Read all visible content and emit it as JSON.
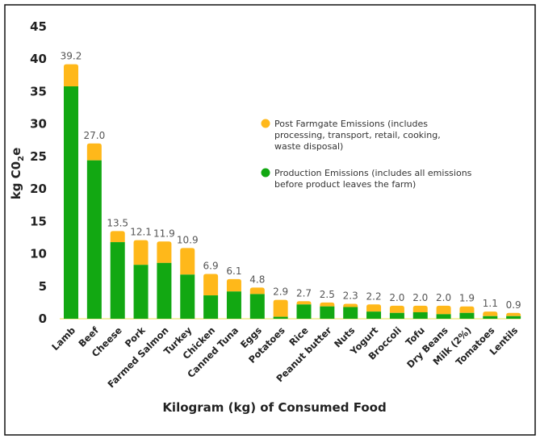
{
  "chart_data": {
    "type": "bar",
    "stacked": true,
    "title": "",
    "xlabel": "Kilogram (kg) of Consumed Food",
    "ylabel": "kg CO2e",
    "ylabel_main": "kg C0",
    "ylabel_sub": "2",
    "ylabel_end": "e",
    "ylim": [
      0,
      45
    ],
    "yticks": [
      0,
      5,
      10,
      15,
      20,
      25,
      30,
      35,
      40,
      45
    ],
    "grid": false,
    "legend_position": "center-right",
    "categories": [
      "Lamb",
      "Beef",
      "Cheese",
      "Pork",
      "Farmed Salmon",
      "Turkey",
      "Chicken",
      "Canned Tuna",
      "Eggs",
      "Potatoes",
      "Rice",
      "Peanut butter",
      "Nuts",
      "Yogurt",
      "Broccoli",
      "Tofu",
      "Dry Beans",
      "Milk (2%)",
      "Tomatoes",
      "Lentils"
    ],
    "totals": [
      "39.2",
      "27.0",
      "13.5",
      "12.1",
      "11.9",
      "10.9",
      "6.9",
      "6.1",
      "4.8",
      "2.9",
      "2.7",
      "2.5",
      "2.3",
      "2.2",
      "2.0",
      "2.0",
      "2.0",
      "1.9",
      "1.1",
      "0.9"
    ],
    "series": [
      {
        "name": "Production Emissions",
        "legend": [
          "Production Emissions (includes all emissions",
          "before product leaves the farm)"
        ],
        "color": "#12a812",
        "values": [
          35.8,
          24.4,
          11.8,
          8.3,
          8.6,
          6.8,
          3.6,
          4.2,
          3.8,
          0.3,
          2.2,
          1.9,
          1.8,
          1.1,
          0.9,
          1.0,
          0.7,
          0.9,
          0.4,
          0.4
        ]
      },
      {
        "name": "Post Farmgate Emissions",
        "legend": [
          "Post Farmgate Emissions (includes",
          "processing, transport, retail, cooking,",
          "waste disposal)"
        ],
        "color": "#ffb81a",
        "values": [
          3.4,
          2.6,
          1.7,
          3.8,
          3.3,
          4.1,
          3.3,
          1.9,
          1.0,
          2.6,
          0.5,
          0.6,
          0.5,
          1.1,
          1.1,
          1.0,
          1.3,
          1.0,
          0.7,
          0.5
        ]
      }
    ]
  }
}
